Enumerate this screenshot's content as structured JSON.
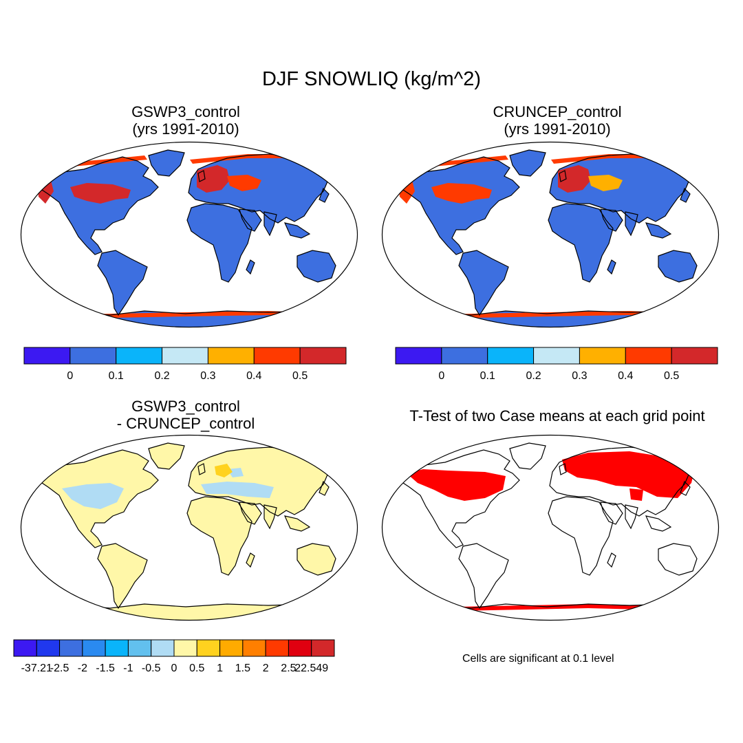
{
  "figure": {
    "title": "DJF SNOWLIQ (kg/m^2)"
  },
  "panels": [
    {
      "id": "gswp3",
      "title_line1": "GSWP3_control",
      "title_line2": "(yrs 1991-2010)",
      "base_color": "#3d6fe0",
      "hotspots": [
        {
          "region": "north-america-east",
          "color": "#d3282a"
        },
        {
          "region": "north-america-west-coast",
          "color": "#d3282a"
        },
        {
          "region": "europe",
          "color": "#d3282a"
        },
        {
          "region": "central-asia",
          "color": "#ff3a00"
        },
        {
          "region": "arctic-coast",
          "color": "#ff3a00"
        },
        {
          "region": "antarctic-coast",
          "color": "#ff3a00"
        }
      ]
    },
    {
      "id": "cruncep",
      "title_line1": "CRUNCEP_control",
      "title_line2": "(yrs 1991-2010)",
      "base_color": "#3d6fe0",
      "hotspots": [
        {
          "region": "north-america-east",
          "color": "#ff3a00"
        },
        {
          "region": "north-america-west-coast",
          "color": "#ff3a00"
        },
        {
          "region": "europe",
          "color": "#d3282a"
        },
        {
          "region": "central-asia",
          "color": "#ffb000"
        },
        {
          "region": "arctic-coast",
          "color": "#ff3a00"
        },
        {
          "region": "antarctic-coast",
          "color": "#ff3a00"
        }
      ]
    },
    {
      "id": "diff",
      "title_line1": "GSWP3_control",
      "title_line2": "- CRUNCEP_control",
      "base_color": "#fff7a8"
    },
    {
      "id": "ttest",
      "title_line1": "T-Test of two Case means at each grid point",
      "note": "Cells are significant at 0.1 level",
      "significant_color": "#ff0000"
    }
  ],
  "colorbar_top": {
    "colors": [
      "#3c19f2",
      "#3d6fe0",
      "#0ab4fa",
      "#c5e8f5",
      "#ffb000",
      "#ff3a00",
      "#d3282a"
    ],
    "labels": [
      "0",
      "0.1",
      "0.2",
      "0.3",
      "0.4",
      "0.5"
    ]
  },
  "colorbar_diff": {
    "colors": [
      "#3c19f2",
      "#2038ee",
      "#3d6fe0",
      "#2a8af0",
      "#0ab4fa",
      "#62c0ee",
      "#b0dcf4",
      "#fff7a8",
      "#ffd21f",
      "#ffab00",
      "#ff7f00",
      "#ff3a00",
      "#e00010",
      "#d3282a"
    ],
    "labels": [
      "-37.21",
      "-2.5",
      "-2",
      "-1.5",
      "-1",
      "-0.5",
      "0",
      "0.5",
      "1",
      "1.5",
      "2",
      "2.5",
      "22.549"
    ]
  }
}
